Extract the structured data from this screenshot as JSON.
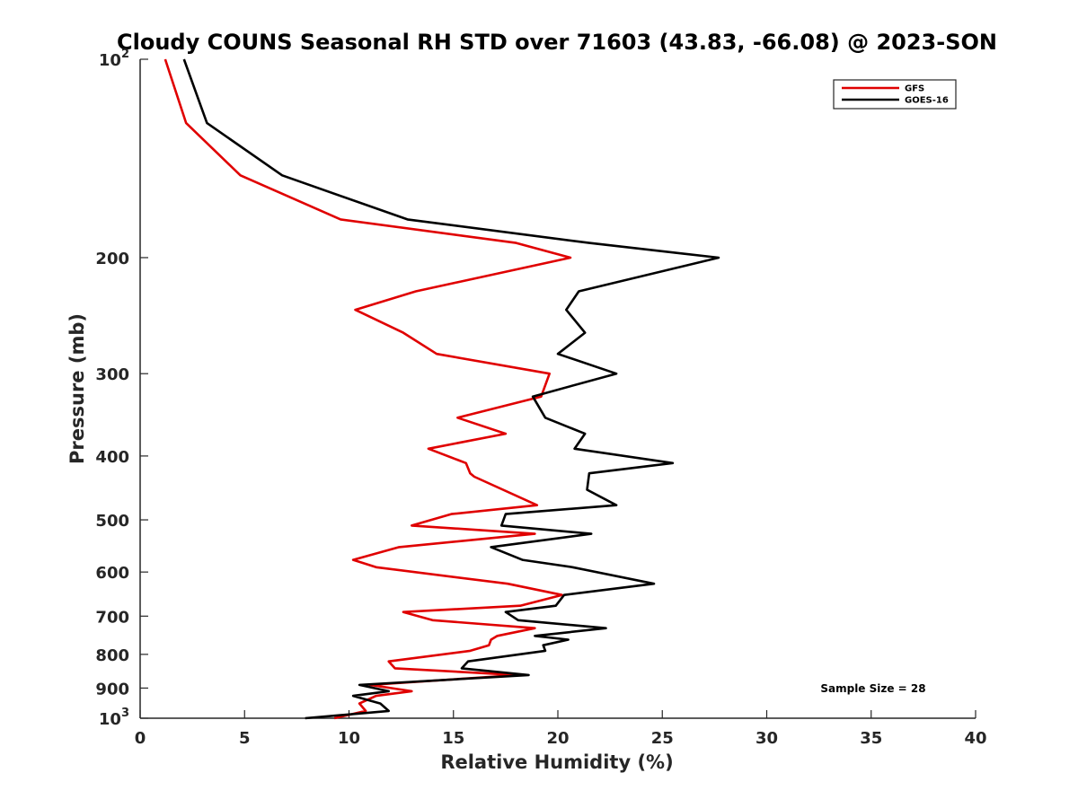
{
  "chart_data": {
    "type": "line",
    "title": "Cloudy COUNS Seasonal RH STD over 71603 (43.83, -66.08) @ 2023-SON",
    "xlabel": "Relative Humidity (%)",
    "ylabel": "Pressure (mb)",
    "xlim": [
      0,
      40
    ],
    "ylim": [
      100,
      1000
    ],
    "yscale": "log",
    "yreversed": true,
    "x_ticks": [
      0,
      5,
      10,
      15,
      20,
      25,
      30,
      35,
      40
    ],
    "y_ticks": [
      {
        "value": 100,
        "base": "10",
        "exp": "2"
      },
      {
        "value": 200,
        "text": "200"
      },
      {
        "value": 300,
        "text": "300"
      },
      {
        "value": 400,
        "text": "400"
      },
      {
        "value": 500,
        "text": "500"
      },
      {
        "value": 600,
        "text": "600"
      },
      {
        "value": 700,
        "text": "700"
      },
      {
        "value": 800,
        "text": "800"
      },
      {
        "value": 900,
        "text": "900"
      },
      {
        "value": 1000,
        "base": "10",
        "exp": "3"
      }
    ],
    "legend_position": "top-right",
    "annotation": "Sample Size = 28",
    "series": [
      {
        "name": "GFS",
        "color": "#e00000",
        "points": [
          [
            1.2,
            100
          ],
          [
            2.2,
            125
          ],
          [
            4.8,
            150
          ],
          [
            9.6,
            175
          ],
          [
            18.0,
            190
          ],
          [
            20.6,
            200
          ],
          [
            13.2,
            225
          ],
          [
            10.3,
            240
          ],
          [
            12.6,
            260
          ],
          [
            14.2,
            280
          ],
          [
            19.6,
            300
          ],
          [
            19.2,
            325
          ],
          [
            15.2,
            350
          ],
          [
            17.5,
            370
          ],
          [
            13.8,
            390
          ],
          [
            15.6,
            410
          ],
          [
            15.8,
            425
          ],
          [
            16.0,
            430
          ],
          [
            19.0,
            475
          ],
          [
            14.9,
            490
          ],
          [
            13.0,
            510
          ],
          [
            18.9,
            525
          ],
          [
            12.4,
            550
          ],
          [
            10.2,
            575
          ],
          [
            11.3,
            590
          ],
          [
            17.6,
            625
          ],
          [
            20.2,
            650
          ],
          [
            18.2,
            675
          ],
          [
            12.6,
            690
          ],
          [
            14.0,
            710
          ],
          [
            18.9,
            730
          ],
          [
            17.1,
            750
          ],
          [
            16.8,
            760
          ],
          [
            16.7,
            775
          ],
          [
            15.8,
            790
          ],
          [
            11.9,
            820
          ],
          [
            12.2,
            840
          ],
          [
            18.1,
            860
          ],
          [
            11.0,
            890
          ],
          [
            13.0,
            910
          ],
          [
            11.3,
            925
          ],
          [
            10.5,
            950
          ],
          [
            10.8,
            975
          ],
          [
            9.3,
            1000
          ]
        ]
      },
      {
        "name": "GOES-16",
        "color": "#000000",
        "points": [
          [
            2.1,
            100
          ],
          [
            3.2,
            125
          ],
          [
            6.8,
            150
          ],
          [
            12.8,
            175
          ],
          [
            21.5,
            190
          ],
          [
            27.7,
            200
          ],
          [
            21.0,
            225
          ],
          [
            20.4,
            240
          ],
          [
            21.3,
            260
          ],
          [
            20.0,
            280
          ],
          [
            22.8,
            300
          ],
          [
            18.8,
            325
          ],
          [
            19.4,
            350
          ],
          [
            21.3,
            370
          ],
          [
            20.8,
            390
          ],
          [
            25.5,
            410
          ],
          [
            21.5,
            425
          ],
          [
            21.4,
            450
          ],
          [
            22.8,
            475
          ],
          [
            17.5,
            490
          ],
          [
            17.3,
            510
          ],
          [
            21.6,
            525
          ],
          [
            16.8,
            550
          ],
          [
            18.3,
            575
          ],
          [
            20.7,
            590
          ],
          [
            24.6,
            625
          ],
          [
            20.3,
            650
          ],
          [
            19.9,
            675
          ],
          [
            17.5,
            690
          ],
          [
            18.1,
            710
          ],
          [
            22.3,
            730
          ],
          [
            18.9,
            750
          ],
          [
            20.5,
            760
          ],
          [
            19.3,
            775
          ],
          [
            19.4,
            790
          ],
          [
            15.7,
            820
          ],
          [
            15.4,
            840
          ],
          [
            18.6,
            860
          ],
          [
            10.5,
            890
          ],
          [
            11.9,
            910
          ],
          [
            10.2,
            925
          ],
          [
            11.5,
            950
          ],
          [
            11.9,
            975
          ],
          [
            7.9,
            1000
          ]
        ]
      }
    ]
  }
}
